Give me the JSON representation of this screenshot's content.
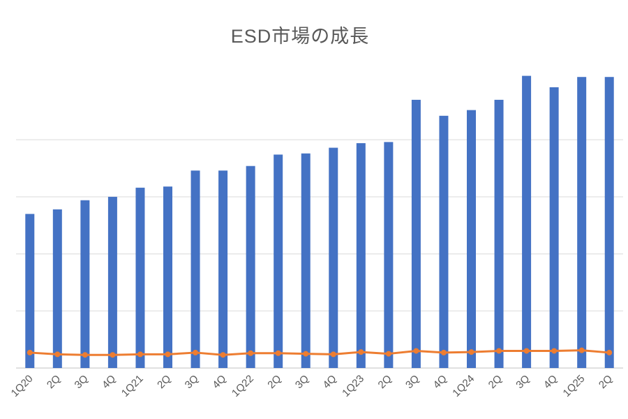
{
  "chart": {
    "title": "ESD市場の成長"
  },
  "chart_data": {
    "type": "combo",
    "title": "ESD市場の成長",
    "categories": [
      "1Q20",
      "2Q",
      "3Q",
      "4Q",
      "1Q21",
      "2Q",
      "3Q",
      "4Q",
      "1Q22",
      "2Q",
      "3Q",
      "4Q",
      "1Q23",
      "2Q",
      "3Q",
      "4Q",
      "1Q24",
      "2Q",
      "3Q",
      "4Q",
      "1Q25",
      "2Q"
    ],
    "series": [
      {
        "type": "bar",
        "color": "#4472C4",
        "values": [
          135,
          139,
          147,
          150,
          158,
          159,
          173,
          173,
          177,
          187,
          188,
          193,
          197,
          198,
          235,
          221,
          226,
          235,
          256,
          246,
          255,
          255
        ]
      },
      {
        "type": "line",
        "color": "#ED7D31",
        "marker": "circle",
        "values": [
          13.5,
          12,
          11.5,
          11.5,
          12,
          12,
          13.5,
          11.5,
          13,
          13,
          12.5,
          12,
          14,
          12.5,
          15,
          13.5,
          14,
          15,
          15,
          15,
          15.5,
          13.5
        ]
      }
    ],
    "xlabel": "",
    "ylabel": "",
    "ylim": [
      0,
      260
    ],
    "gridline_interval": 50,
    "grid": true,
    "legend": "none",
    "x_tick_rotation": -45,
    "colors": {
      "title_text": "#595959",
      "tick_text": "#595959",
      "gridline": "#E2E2E2",
      "axis_line": "#D6D6D6",
      "background": "#ffffff"
    }
  }
}
